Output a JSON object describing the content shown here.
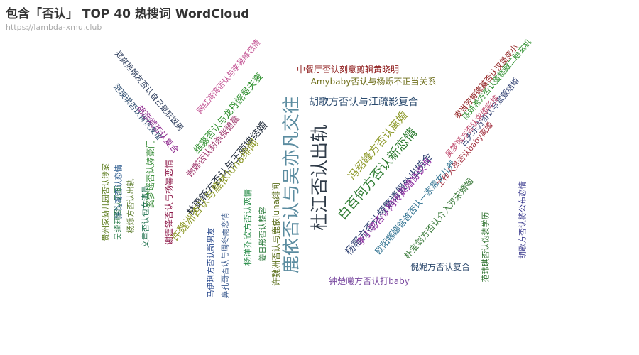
{
  "header": {
    "title": "包含「否认」 TOP 40 热搜词 WordCloud",
    "subtitle": "https://lambda-xmu.club"
  },
  "chart_data": {
    "type": "wordcloud",
    "title": "包含「否认」 TOP 40 热搜词 WordCloud",
    "subtitle": "https://lambda-xmu.club",
    "words": [
      {
        "text": "鹿依否认与吴亦凡交往",
        "rank": 1,
        "color": "#5b8ca0"
      },
      {
        "text": "杜江否认出轨",
        "rank": 2,
        "color": "#2e3a47"
      },
      {
        "text": "白百何方否认新恋情",
        "rank": 3,
        "color": "#2f7d32"
      },
      {
        "text": "冯绍峰方否认离婚",
        "rank": 4,
        "color": "#8e9a2a"
      },
      {
        "text": "杨幂方否认频繁请假外出捞金",
        "rank": 5,
        "color": "#2a3c6e"
      },
      {
        "text": "李小璐否认网传离婚协议书",
        "rank": 6,
        "color": "#8e2aa0"
      },
      {
        "text": "欧阳娜娜爸爸否认一家靠女儿养",
        "rank": 7,
        "color": "#2a6e8e"
      },
      {
        "text": "朴宝剑方否认介入双宋婚姻",
        "rank": 8,
        "color": "#3a7a3a"
      },
      {
        "text": "倪妮方否认复合",
        "rank": 9,
        "color": "#2e4a6e"
      },
      {
        "text": "钟楚曦方否认打baby",
        "rank": 10,
        "color": "#7a4aa0"
      },
      {
        "text": "林更新方否认与王丽坤结婚",
        "rank": 11,
        "color": "#1f2a3a"
      },
      {
        "text": "许魏洲否认与鹿依luna绯闻",
        "rank": 12,
        "color": "#8e9a2a"
      },
      {
        "text": "许魏洲否认与鹿依luna绯闻",
        "rank": 13,
        "color": "#5a6e1a"
      },
      {
        "text": "杨洋乔欣方否认恋情",
        "rank": 14,
        "color": "#2a8e4a"
      },
      {
        "text": "维嘉否认与龙丹妮是夫妻",
        "rank": 15,
        "color": "#2a8e2a"
      },
      {
        "text": "谢娜否认封杀张碧晨",
        "rank": 16,
        "color": "#a03a6e"
      },
      {
        "text": "马伊琍方否认新男友",
        "rank": 17,
        "color": "#2a4a8e"
      },
      {
        "text": "鼻孔哥否认与周冬雨恋情",
        "rank": 18,
        "color": "#3a5a8e"
      },
      {
        "text": "姜日彤否认整容",
        "rank": 19,
        "color": "#2a7a3a"
      },
      {
        "text": "胡歌方否认与江疏影复合",
        "rank": 20,
        "color": "#2a4a6e"
      },
      {
        "text": "Amybaby否认与杨烁不正当关系",
        "rank": 21,
        "color": "#6e6e1a"
      },
      {
        "text": "中餐厅否认刻意剪辑黄晓明",
        "rank": 22,
        "color": "#8e1a1a"
      },
      {
        "text": "网红湾湾否认与李易峰恋情",
        "rank": 23,
        "color": "#c04a8e"
      },
      {
        "text": "郑爽男朋友否认自己是软饭男",
        "rank": 24,
        "color": "#2a3a5a"
      },
      {
        "text": "范瑛琪否认肯恢友谊",
        "rank": 25,
        "color": "#2a4a6e"
      },
      {
        "text": "胡彦斌否认复合",
        "rank": 26,
        "color": "#8e2a8e"
      },
      {
        "text": "奚梦瑶否认嫁豪门",
        "rank": 27,
        "color": "#3a8e3a"
      },
      {
        "text": "谢霆锋否认与杨幂恋情",
        "rank": 28,
        "color": "#8e1a4a"
      },
      {
        "text": "杨烁方否认出轨",
        "rank": 29,
        "color": "#5a7a2a"
      },
      {
        "text": "张钧甯否认恋情",
        "rank": 30,
        "color": "#2a5a8e"
      },
      {
        "text": "文章否认包女演员",
        "rank": 31,
        "color": "#1a6e4a"
      },
      {
        "text": "吴绮莉否认见面",
        "rank": 32,
        "color": "#2a7a4a"
      },
      {
        "text": "贵州家幼儿园否认涉案",
        "rank": 33,
        "color": "#5a7a1a"
      },
      {
        "text": "陈妍希方否认蛋糕藏二胎玄机",
        "rank": 34,
        "color": "#2a8e2a"
      },
      {
        "text": "麦当劳肯德基否认汉堡变小",
        "rank": 35,
        "color": "#8e1a1a"
      },
      {
        "text": "古天乐方否认与宣萱结婚",
        "rank": 36,
        "color": "#2a3a6e"
      },
      {
        "text": "吴梦瑶方否认求婚彩排",
        "rank": 37,
        "color": "#c04a6e"
      },
      {
        "text": "工作人员否认baby离婚",
        "rank": 38,
        "color": "#a02a3a"
      },
      {
        "text": "范玮琪否认伪装学历",
        "rank": 39,
        "color": "#2a6e2a"
      },
      {
        "text": "胡歌方否认将公布恋情",
        "rank": 40,
        "color": "#3a3a8e"
      }
    ]
  }
}
